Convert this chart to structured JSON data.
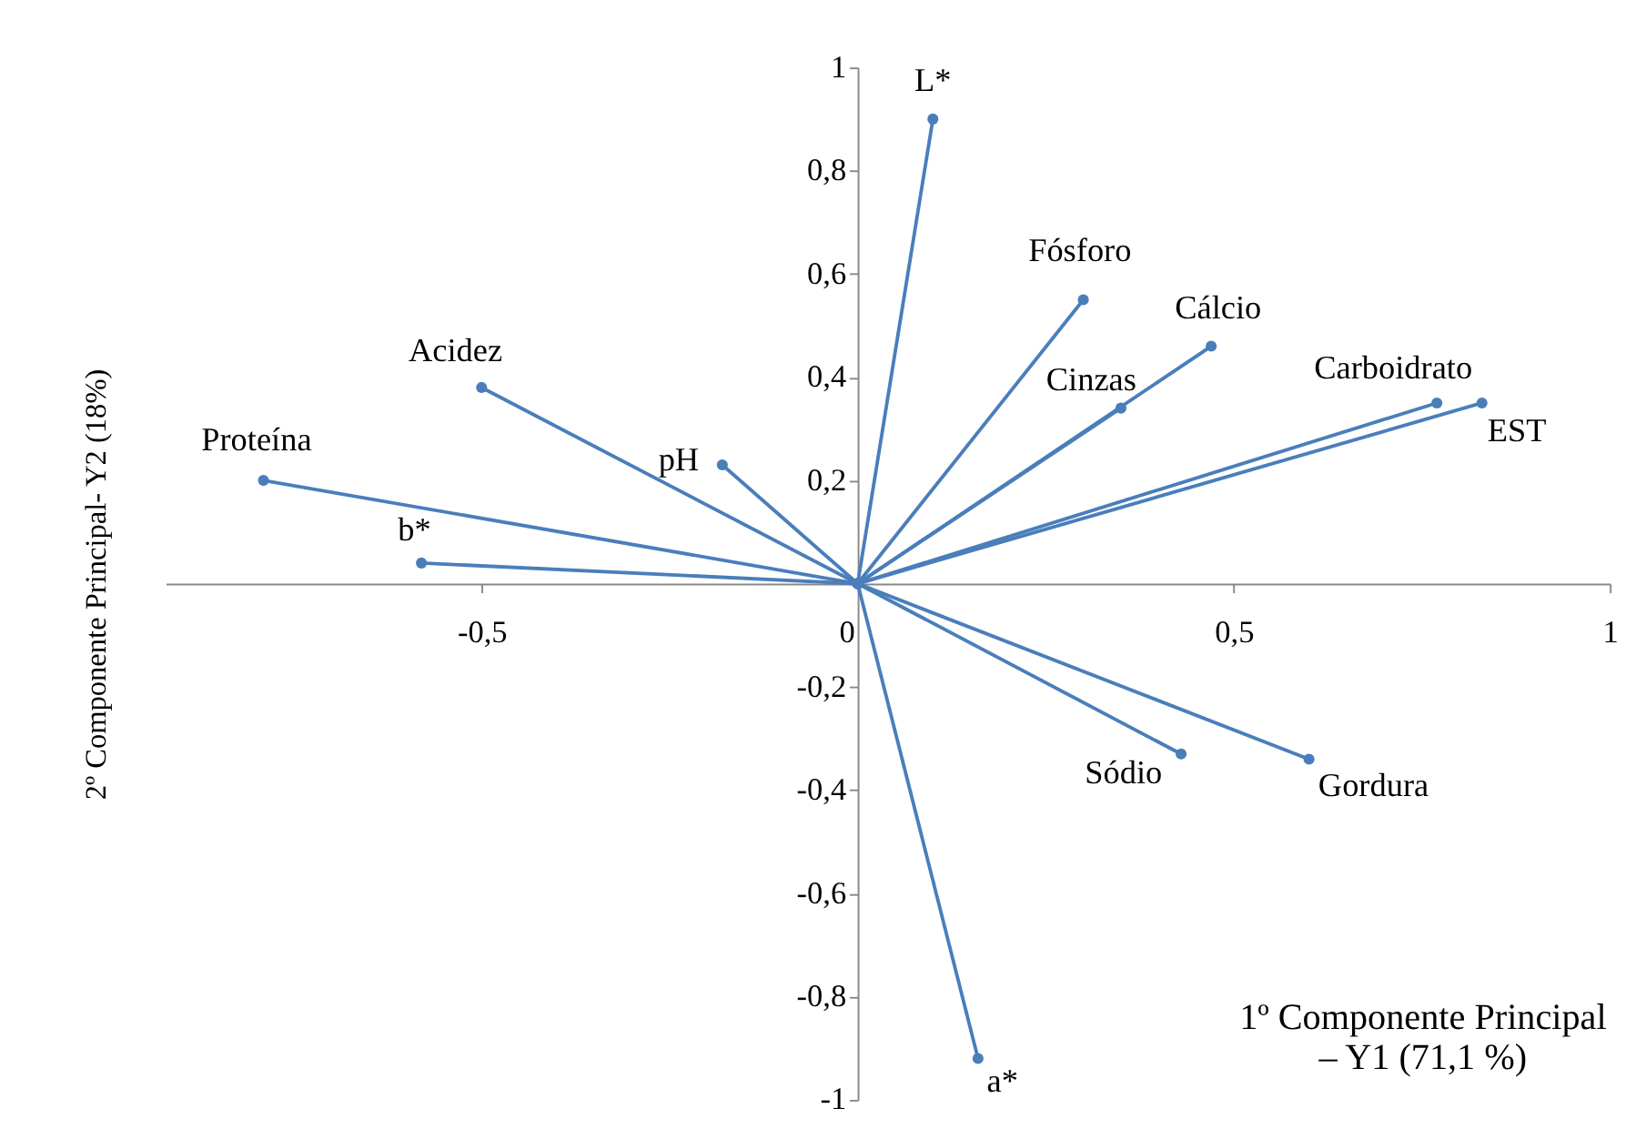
{
  "chart_data": {
    "type": "line",
    "xlabel": "1º Componente Principal\n– Y1 (71,1 %)",
    "ylabel": "2º Componente Principal- Y2 (18%)",
    "xlim": [
      -0.92,
      1
    ],
    "ylim": [
      -1,
      1
    ],
    "xticks": [
      {
        "value": -0.5,
        "label": "-0,5"
      },
      0,
      {
        "value": 0.5,
        "label": "0,5"
      },
      1
    ],
    "yticks": [
      {
        "value": -1,
        "label": "-1"
      },
      {
        "value": -0.8,
        "label": "-0,8"
      },
      {
        "value": -0.6,
        "label": "-0,6"
      },
      {
        "value": -0.4,
        "label": "-0,4"
      },
      {
        "value": -0.2,
        "label": "-0,2"
      },
      {
        "value": 0,
        "label": null
      },
      {
        "value": 0.2,
        "label": "0,2"
      },
      {
        "value": 0.4,
        "label": "0,4"
      },
      {
        "value": 0.6,
        "label": "0,6"
      },
      {
        "value": 0.8,
        "label": "0,8"
      },
      1
    ],
    "grid": false,
    "legend": false,
    "marker": "circle",
    "line_style": "solid",
    "series": [
      {
        "name": "L*",
        "color": "#4a7ebb",
        "x": [
          0,
          0.1
        ],
        "values": [
          0,
          0.9
        ]
      },
      {
        "name": "Fósforo",
        "color": "#4a7ebb",
        "x": [
          0,
          0.3
        ],
        "values": [
          0,
          0.55
        ]
      },
      {
        "name": "Cálcio",
        "color": "#4a7ebb",
        "x": [
          0,
          0.47
        ],
        "values": [
          0,
          0.46
        ]
      },
      {
        "name": "Cinzas",
        "color": "#4a7ebb",
        "x": [
          0,
          0.35
        ],
        "values": [
          0,
          0.34
        ]
      },
      {
        "name": "Carboidrato",
        "color": "#4a7ebb",
        "x": [
          0,
          0.77
        ],
        "values": [
          0,
          0.35
        ]
      },
      {
        "name": "EST",
        "color": "#4a7ebb",
        "x": [
          0,
          0.83
        ],
        "values": [
          0,
          0.35
        ]
      },
      {
        "name": "Sódio",
        "color": "#4a7ebb",
        "x": [
          0,
          0.43
        ],
        "values": [
          0,
          -0.33
        ]
      },
      {
        "name": "Gordura",
        "color": "#4a7ebb",
        "x": [
          0,
          0.6
        ],
        "values": [
          0,
          -0.34
        ]
      },
      {
        "name": "a*",
        "color": "#4a7ebb",
        "x": [
          0,
          0.16
        ],
        "values": [
          0,
          -0.92
        ]
      },
      {
        "name": "pH",
        "color": "#4a7ebb",
        "x": [
          0,
          -0.18
        ],
        "values": [
          0,
          0.23
        ]
      },
      {
        "name": "Acidez",
        "color": "#4a7ebb",
        "x": [
          0,
          -0.5
        ],
        "values": [
          0,
          0.38
        ]
      },
      {
        "name": "Proteína",
        "color": "#4a7ebb",
        "x": [
          0,
          -0.79
        ],
        "values": [
          0,
          0.2
        ]
      },
      {
        "name": "b*",
        "color": "#4a7ebb",
        "x": [
          0,
          -0.58
        ],
        "values": [
          0,
          0.04
        ]
      }
    ]
  }
}
